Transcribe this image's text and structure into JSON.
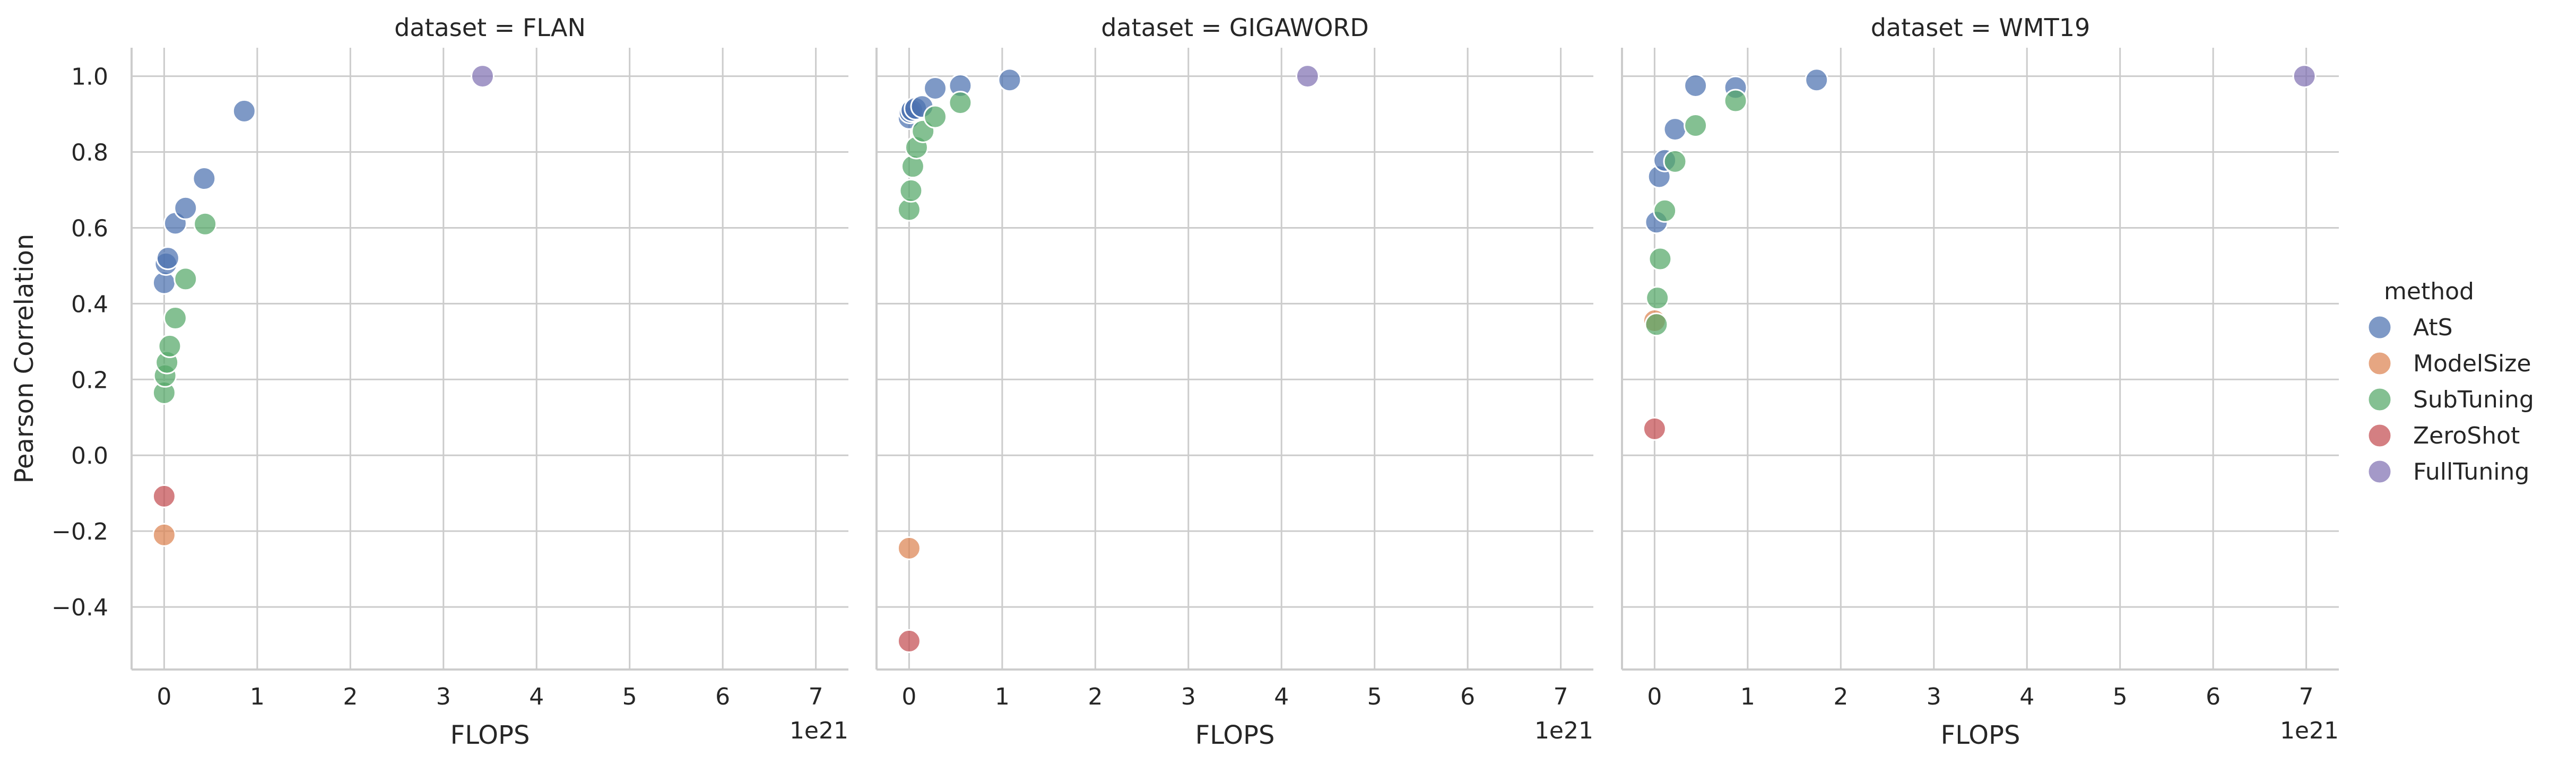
{
  "chart_data": [
    {
      "type": "scatter",
      "title": "dataset = FLAN",
      "xlabel": "FLOPS",
      "ylabel": "Pearson Correlation",
      "x_offset_label": "1e21",
      "xlim": [
        -0.35,
        7.35
      ],
      "ylim": [
        -0.565,
        1.075
      ],
      "xticks": [
        "0",
        "1",
        "2",
        "3",
        "4",
        "5",
        "6",
        "7"
      ],
      "yticks": [
        "1.0",
        "0.8",
        "0.6",
        "0.4",
        "0.2",
        "0.0",
        "−0.2",
        "−0.4"
      ],
      "grid": true,
      "series": [
        {
          "name": "AtS",
          "points": [
            [
              0.0,
              0.455
            ],
            [
              0.02,
              0.505
            ],
            [
              0.04,
              0.52
            ],
            [
              0.12,
              0.612
            ],
            [
              0.23,
              0.652
            ],
            [
              0.43,
              0.73
            ],
            [
              0.86,
              0.908
            ]
          ]
        },
        {
          "name": "ModelSize",
          "points": [
            [
              0.0,
              -0.21
            ]
          ]
        },
        {
          "name": "SubTuning",
          "points": [
            [
              0.0,
              0.165
            ],
            [
              0.01,
              0.21
            ],
            [
              0.03,
              0.245
            ],
            [
              0.06,
              0.288
            ],
            [
              0.12,
              0.362
            ],
            [
              0.23,
              0.465
            ],
            [
              0.44,
              0.61
            ]
          ]
        },
        {
          "name": "ZeroShot",
          "points": [
            [
              0.0,
              -0.108
            ]
          ]
        },
        {
          "name": "FullTuning",
          "points": [
            [
              3.42,
              1.0
            ]
          ]
        }
      ]
    },
    {
      "type": "scatter",
      "title": "dataset = GIGAWORD",
      "xlabel": "FLOPS",
      "ylabel": "",
      "x_offset_label": "1e21",
      "xlim": [
        -0.35,
        7.35
      ],
      "ylim": [
        -0.565,
        1.075
      ],
      "xticks": [
        "0",
        "1",
        "2",
        "3",
        "4",
        "5",
        "6",
        "7"
      ],
      "yticks": [],
      "grid": true,
      "series": [
        {
          "name": "AtS",
          "points": [
            [
              0.0,
              0.89
            ],
            [
              0.01,
              0.905
            ],
            [
              0.03,
              0.91
            ],
            [
              0.07,
              0.915
            ],
            [
              0.14,
              0.92
            ],
            [
              0.28,
              0.968
            ],
            [
              0.55,
              0.975
            ],
            [
              1.08,
              0.99
            ]
          ]
        },
        {
          "name": "ModelSize",
          "points": [
            [
              0.0,
              -0.245
            ]
          ]
        },
        {
          "name": "SubTuning",
          "points": [
            [
              0.0,
              0.648
            ],
            [
              0.02,
              0.698
            ],
            [
              0.04,
              0.762
            ],
            [
              0.08,
              0.812
            ],
            [
              0.15,
              0.855
            ],
            [
              0.28,
              0.893
            ],
            [
              0.55,
              0.93
            ]
          ]
        },
        {
          "name": "ZeroShot",
          "points": [
            [
              0.0,
              -0.49
            ]
          ]
        },
        {
          "name": "FullTuning",
          "points": [
            [
              4.28,
              1.0
            ]
          ]
        }
      ]
    },
    {
      "type": "scatter",
      "title": "dataset = WMT19",
      "xlabel": "FLOPS",
      "ylabel": "",
      "x_offset_label": "1e21",
      "xlim": [
        -0.35,
        7.35
      ],
      "ylim": [
        -0.565,
        1.075
      ],
      "xticks": [
        "0",
        "1",
        "2",
        "3",
        "4",
        "5",
        "6",
        "7"
      ],
      "yticks": [],
      "grid": true,
      "series": [
        {
          "name": "AtS",
          "points": [
            [
              0.02,
              0.615
            ],
            [
              0.05,
              0.735
            ],
            [
              0.11,
              0.778
            ],
            [
              0.22,
              0.86
            ],
            [
              0.44,
              0.975
            ],
            [
              0.87,
              0.97
            ],
            [
              1.74,
              0.99
            ]
          ]
        },
        {
          "name": "ModelSize",
          "points": [
            [
              0.0,
              0.355
            ]
          ]
        },
        {
          "name": "SubTuning",
          "points": [
            [
              0.02,
              0.345
            ],
            [
              0.03,
              0.415
            ],
            [
              0.06,
              0.518
            ],
            [
              0.11,
              0.645
            ],
            [
              0.22,
              0.775
            ],
            [
              0.44,
              0.87
            ],
            [
              0.87,
              0.935
            ]
          ]
        },
        {
          "name": "ZeroShot",
          "points": [
            [
              0.0,
              0.07
            ]
          ]
        },
        {
          "name": "FullTuning",
          "points": [
            [
              6.98,
              1.0
            ]
          ]
        }
      ]
    }
  ],
  "legend": {
    "title": "method",
    "placement": "right",
    "entries": [
      {
        "label": "AtS",
        "color": "#4c72b0"
      },
      {
        "label": "ModelSize",
        "color": "#dd8452"
      },
      {
        "label": "SubTuning",
        "color": "#55a868"
      },
      {
        "label": "ZeroShot",
        "color": "#c44e52"
      },
      {
        "label": "FullTuning",
        "color": "#8172b3"
      }
    ]
  }
}
